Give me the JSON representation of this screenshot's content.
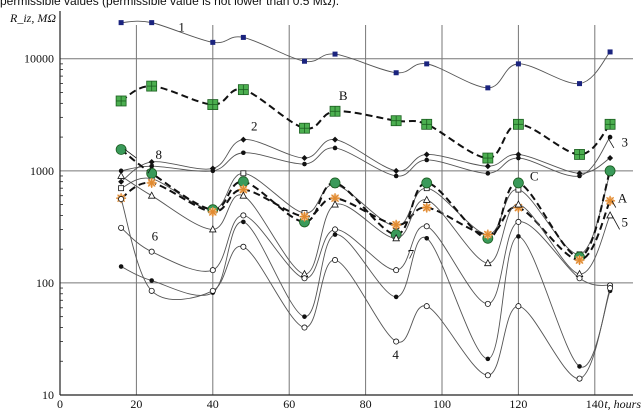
{
  "caption_fragment": "permissible values (permissible value is not lower than 0.5 MΩ).",
  "chart_data": {
    "type": "line",
    "title": "",
    "ylabel": "R_iz, MΩ",
    "xlabel": "t, hours",
    "y_scale": "log",
    "xlim": [
      0,
      150
    ],
    "ylim": [
      10,
      20000
    ],
    "grid": true,
    "x_ticks": [
      "0",
      "20",
      "40",
      "60",
      "80",
      "100",
      "120",
      "140"
    ],
    "y_ticks": [
      "10",
      "100",
      "1000",
      "10000"
    ],
    "series": [
      {
        "name": "1",
        "color": "#1a237e",
        "marker": "square-small",
        "dashed": false,
        "x": [
          16,
          24,
          40,
          48,
          64,
          72,
          88,
          96,
          112,
          120,
          136,
          144
        ],
        "y": [
          21000,
          21000,
          14000,
          15500,
          9500,
          11000,
          7500,
          9000,
          5500,
          9000,
          6000,
          11500
        ]
      },
      {
        "name": "B",
        "color": "#4caf50",
        "marker": "square-plus",
        "dashed": true,
        "x": [
          16,
          24,
          40,
          48,
          64,
          72,
          88,
          96,
          112,
          120,
          136,
          144
        ],
        "y": [
          4200,
          5700,
          3900,
          5300,
          2400,
          3400,
          2800,
          2600,
          1300,
          2600,
          1400,
          2600
        ]
      },
      {
        "name": "2",
        "color": "#111111",
        "marker": "diamond",
        "dashed": false,
        "x": [
          16,
          24,
          40,
          48,
          64,
          72,
          88,
          96,
          112,
          120,
          136,
          144
        ],
        "y": [
          800,
          1200,
          1050,
          1900,
          1300,
          1900,
          1000,
          1400,
          1100,
          1400,
          950,
          1300
        ]
      },
      {
        "name": "3",
        "color": "#111111",
        "marker": "dot",
        "dashed": false,
        "x": [
          16,
          24,
          40,
          48,
          64,
          72,
          88,
          96,
          112,
          120,
          136,
          144
        ],
        "y": [
          1000,
          1100,
          1000,
          1450,
          1150,
          1600,
          900,
          1250,
          950,
          1300,
          900,
          2000
        ]
      },
      {
        "name": "8",
        "color": "#111111",
        "marker": "square-open",
        "dashed": false,
        "x": [
          16,
          24,
          40,
          48,
          64,
          72,
          88,
          96,
          112,
          120,
          136,
          144
        ],
        "y": [
          700,
          850,
          450,
          950,
          420,
          750,
          320,
          700,
          270,
          680,
          180,
          950
        ]
      },
      {
        "name": "C",
        "color": "#3a9a5a",
        "marker": "circle-fill",
        "dashed": true,
        "x": [
          16,
          24,
          40,
          48,
          64,
          72,
          88,
          96,
          112,
          120,
          136,
          144
        ],
        "y": [
          1550,
          950,
          450,
          800,
          350,
          780,
          270,
          780,
          250,
          780,
          170,
          1000
        ]
      },
      {
        "name": "A",
        "color": "#e08a30",
        "marker": "star",
        "dashed": true,
        "x": [
          16,
          24,
          40,
          48,
          64,
          72,
          88,
          96,
          112,
          120,
          136,
          144
        ],
        "y": [
          570,
          780,
          430,
          680,
          390,
          570,
          330,
          470,
          270,
          470,
          160,
          540
        ]
      },
      {
        "name": "5",
        "color": "#111111",
        "marker": "triangle-open",
        "dashed": false,
        "x": [
          16,
          24,
          40,
          48,
          64,
          72,
          88,
          96,
          112,
          120,
          136,
          144
        ],
        "y": [
          900,
          600,
          300,
          600,
          120,
          500,
          250,
          550,
          150,
          500,
          120,
          400
        ]
      },
      {
        "name": "6",
        "color": "#111111",
        "marker": "circle-open",
        "dashed": false,
        "x": [
          16,
          24,
          40,
          48,
          64,
          72,
          88,
          96,
          112,
          120,
          136,
          144
        ],
        "y": [
          310,
          190,
          130,
          400,
          110,
          300,
          130,
          320,
          65,
          350,
          110,
          95
        ]
      },
      {
        "name": "7",
        "color": "#111111",
        "marker": "dot",
        "dashed": false,
        "x": [
          16,
          24,
          40,
          48,
          64,
          72,
          88,
          96,
          112,
          120,
          136,
          144
        ],
        "y": [
          140,
          105,
          82,
          350,
          50,
          270,
          75,
          250,
          21,
          260,
          18,
          85
        ]
      },
      {
        "name": "4",
        "color": "#111111",
        "marker": "circle-open",
        "dashed": false,
        "x": [
          16,
          24,
          40,
          48,
          64,
          72,
          88,
          96,
          112,
          120,
          136,
          144
        ],
        "y": [
          560,
          85,
          85,
          210,
          40,
          160,
          30,
          62,
          15,
          62,
          14,
          90
        ]
      }
    ]
  }
}
